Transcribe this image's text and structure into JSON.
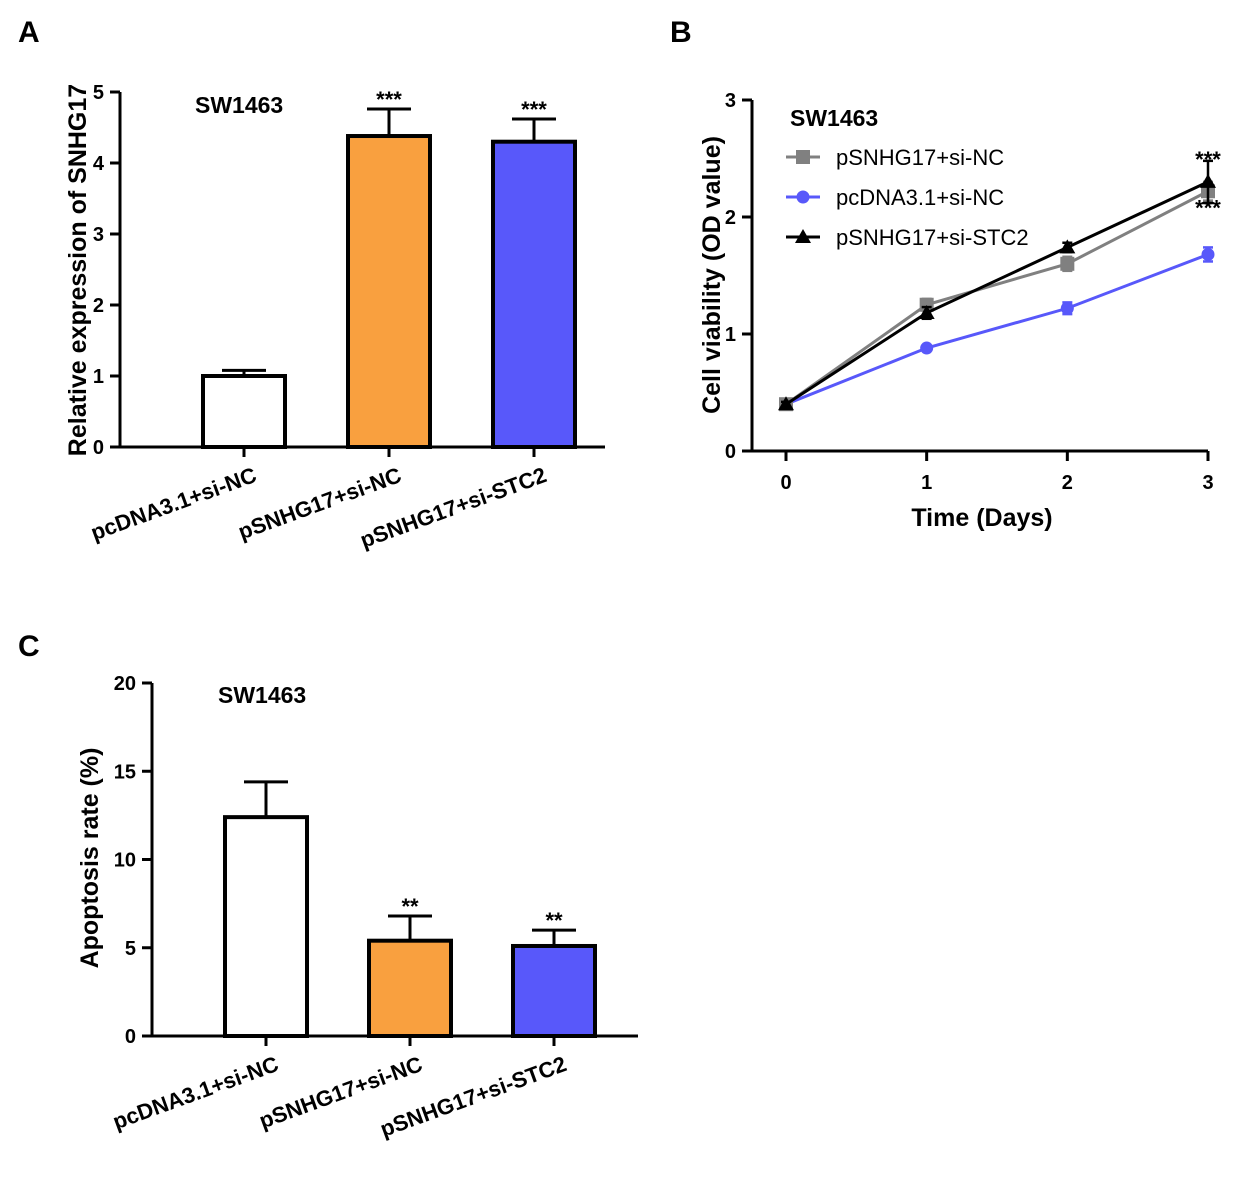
{
  "panels": {
    "a": "A",
    "b": "B",
    "c": "C"
  },
  "chart_data": [
    {
      "type": "bar",
      "panel": "A",
      "title": "SW1463",
      "ylabel": "Relative expression of SNHG17",
      "xlabel": "",
      "ylim": [
        0,
        5
      ],
      "yticks": [
        "0",
        "1",
        "2",
        "3",
        "4",
        "5"
      ],
      "categories": [
        "pcDNA3.1+si-NC",
        "pSNHG17+si-NC",
        "pSNHG17+si-STC2"
      ],
      "values": [
        1.0,
        4.38,
        4.3
      ],
      "errors": [
        0.08,
        0.38,
        0.32
      ],
      "colors": [
        "#ffffff",
        "#f9a03f",
        "#5858fa"
      ],
      "significance": [
        "",
        "***",
        "***"
      ]
    },
    {
      "type": "line",
      "panel": "B",
      "title": "SW1463",
      "ylabel": "Cell viability (OD value)",
      "xlabel": "Time (Days)",
      "x": [
        0,
        1,
        2,
        3
      ],
      "xticks": [
        "0",
        "1",
        "2",
        "3"
      ],
      "ylim": [
        0,
        3
      ],
      "yticks": [
        "0",
        "1",
        "2",
        "3"
      ],
      "series": [
        {
          "name": "pSNHG17+si-NC",
          "values": [
            0.4,
            1.25,
            1.6,
            2.22
          ],
          "errors": [
            0.02,
            0.05,
            0.06,
            0.08
          ],
          "color": "#808080",
          "marker": "square"
        },
        {
          "name": "pcDNA3.1+si-NC",
          "values": [
            0.4,
            0.88,
            1.22,
            1.68
          ],
          "errors": [
            0.02,
            0.02,
            0.05,
            0.06
          ],
          "color": "#5858fa",
          "marker": "circle"
        },
        {
          "name": "pSNHG17+si-STC2",
          "values": [
            0.4,
            1.18,
            1.74,
            2.3
          ],
          "errors": [
            0.02,
            0.05,
            0.04,
            0.18
          ],
          "color": "#000000",
          "marker": "triangle"
        }
      ],
      "annotations": [
        "***",
        "***"
      ]
    },
    {
      "type": "bar",
      "panel": "C",
      "title": "SW1463",
      "ylabel": "Apoptosis rate (%)",
      "xlabel": "",
      "ylim": [
        0,
        20
      ],
      "yticks": [
        "0",
        "5",
        "10",
        "15",
        "20"
      ],
      "categories": [
        "pcDNA3.1+si-NC",
        "pSNHG17+si-NC",
        "pSNHG17+si-STC2"
      ],
      "values": [
        12.4,
        5.4,
        5.1
      ],
      "errors": [
        2.0,
        1.4,
        0.9
      ],
      "colors": [
        "#ffffff",
        "#f9a03f",
        "#5858fa"
      ],
      "significance": [
        "",
        "**",
        "**"
      ]
    }
  ]
}
